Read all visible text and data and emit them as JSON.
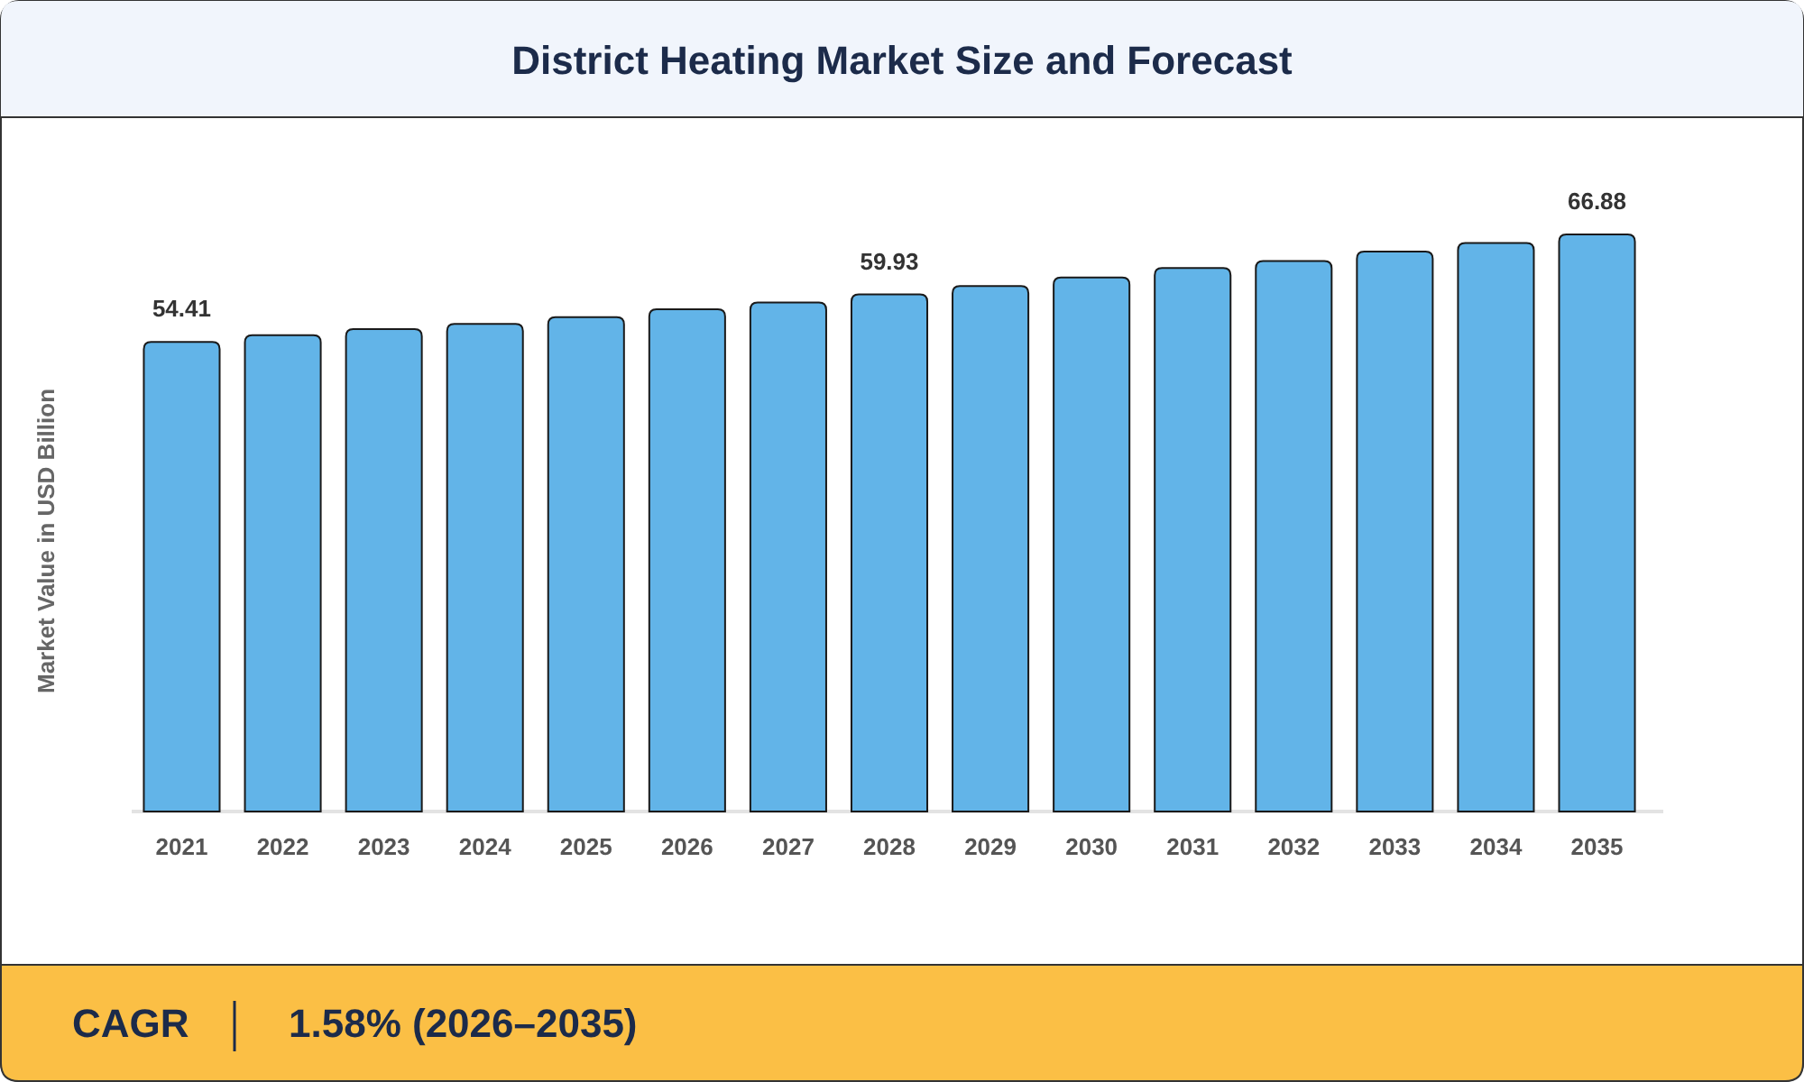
{
  "chart_data": {
    "type": "bar",
    "title": "District Heating Market Size and Forecast",
    "ylabel": "Market Value in USD Billion",
    "categories": [
      "2021",
      "2022",
      "2023",
      "2024",
      "2025",
      "2026",
      "2027",
      "2028",
      "2029",
      "2030",
      "2031",
      "2032",
      "2033",
      "2034",
      "2035"
    ],
    "values": [
      54.41,
      55.2,
      55.9,
      56.5,
      57.3,
      58.2,
      59.0,
      59.93,
      60.9,
      61.9,
      63.0,
      63.8,
      64.9,
      65.9,
      66.88
    ],
    "value_labels": [
      "54.41",
      null,
      null,
      null,
      null,
      null,
      null,
      "59.93",
      null,
      null,
      null,
      null,
      null,
      null,
      "66.88"
    ],
    "color": "#62b4e8",
    "annotations": [
      "CAGR",
      "1.58% (2026–2035)"
    ]
  }
}
